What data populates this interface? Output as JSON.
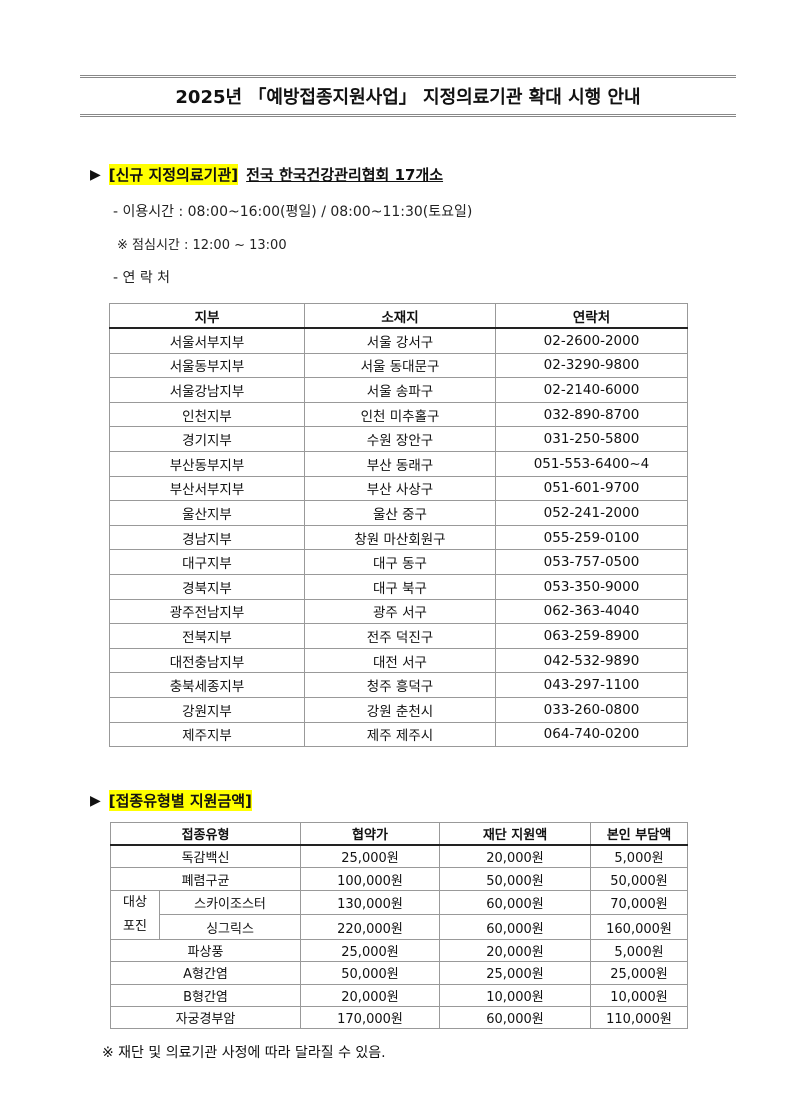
{
  "title": "2025년 「예방접종지원사업」 지정의료기관 확대 시행 안내",
  "section1": {
    "tag": "[신규 지정의료기관]",
    "heading": "전국 한국건강관리협회 17개소",
    "hours": "- 이용시간 : 08:00~16:00(평일) / 08:00~11:30(토요일)",
    "lunch": "※ 점심시간 : 12:00 ~ 13:00",
    "contact": "- 연 락 처",
    "columns": [
      "지부",
      "소재지",
      "연락처"
    ],
    "rows": [
      [
        "서울서부지부",
        "서울 강서구",
        "02-2600-2000"
      ],
      [
        "서울동부지부",
        "서울 동대문구",
        "02-3290-9800"
      ],
      [
        "서울강남지부",
        "서울 송파구",
        "02-2140-6000"
      ],
      [
        "인천지부",
        "인천 미추홀구",
        "032-890-8700"
      ],
      [
        "경기지부",
        "수원 장안구",
        "031-250-5800"
      ],
      [
        "부산동부지부",
        "부산 동래구",
        "051-553-6400~4"
      ],
      [
        "부산서부지부",
        "부산 사상구",
        "051-601-9700"
      ],
      [
        "울산지부",
        "울산 중구",
        "052-241-2000"
      ],
      [
        "경남지부",
        "창원 마산회원구",
        "055-259-0100"
      ],
      [
        "대구지부",
        "대구 동구",
        "053-757-0500"
      ],
      [
        "경북지부",
        "대구 북구",
        "053-350-9000"
      ],
      [
        "광주전남지부",
        "광주 서구",
        "062-363-4040"
      ],
      [
        "전북지부",
        "전주 덕진구",
        "063-259-8900"
      ],
      [
        "대전충남지부",
        "대전 서구",
        "042-532-9890"
      ],
      [
        "충북세종지부",
        "청주 흥덕구",
        "043-297-1100"
      ],
      [
        "강원지부",
        "강원 춘천시",
        "033-260-0800"
      ],
      [
        "제주지부",
        "제주 제주시",
        "064-740-0200"
      ]
    ]
  },
  "section2": {
    "tag": "[접종유형별 지원금액]",
    "columns": [
      "접종유형",
      "협약가",
      "재단 지원액",
      "본인 부담액"
    ],
    "group_label_1": "대상",
    "group_label_2": "포진",
    "rows": [
      [
        "독감백신",
        "25,000원",
        "20,000원",
        "5,000원"
      ],
      [
        "폐렴구균",
        "100,000원",
        "50,000원",
        "50,000원"
      ],
      [
        "스카이조스터",
        "130,000원",
        "60,000원",
        "70,000원"
      ],
      [
        "싱그릭스",
        "220,000원",
        "60,000원",
        "160,000원"
      ],
      [
        "파상풍",
        "25,000원",
        "20,000원",
        "5,000원"
      ],
      [
        "A형간염",
        "50,000원",
        "25,000원",
        "25,000원"
      ],
      [
        "B형간염",
        "20,000원",
        "10,000원",
        "10,000원"
      ],
      [
        "자궁경부암",
        "170,000원",
        "60,000원",
        "110,000원"
      ]
    ],
    "note": "※ 재단 및 의료기관 사정에 따라 달라질 수 있음."
  },
  "colors": {
    "highlight": "#ffff00"
  }
}
